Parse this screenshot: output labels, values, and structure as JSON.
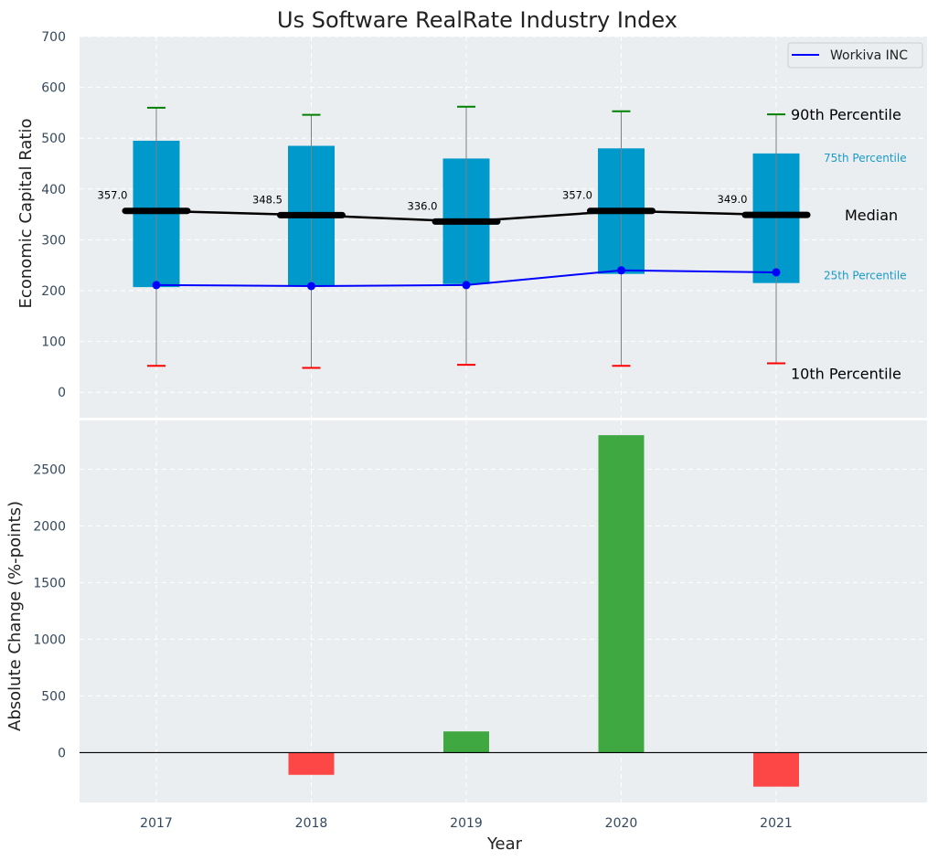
{
  "chart_data": [
    {
      "type": "box",
      "title": "Us Software RealRate Industry Index",
      "xlabel": "",
      "ylabel": "Economic Capital Ratio",
      "ylim": [
        -50,
        700
      ],
      "yticks": [
        0,
        100,
        200,
        300,
        400,
        500,
        600,
        700
      ],
      "grid": true,
      "categories": [
        "2017",
        "2018",
        "2019",
        "2020",
        "2021"
      ],
      "percentiles": {
        "p10": [
          52,
          48,
          54,
          52,
          57
        ],
        "p25": [
          207,
          209,
          213,
          233,
          215
        ],
        "median": [
          357.0,
          348.5,
          336.0,
          357.0,
          349.0
        ],
        "p75": [
          495,
          485,
          460,
          480,
          470
        ],
        "p90": [
          560,
          546,
          562,
          553,
          547
        ]
      },
      "median_labels": [
        "357.0",
        "348.5",
        "336.0",
        "357.0",
        "349.0"
      ],
      "series": [
        {
          "name": "Workiva INC",
          "values": [
            211,
            209,
            211,
            240,
            236
          ],
          "color": "#0000ff"
        }
      ],
      "annotations": {
        "p90": "90th Percentile",
        "p75": "75th Percentile",
        "median": "Median",
        "p25": "25th Percentile",
        "p10": "10th Percentile"
      },
      "legend": {
        "position": "top-right",
        "entries": [
          "Workiva INC"
        ]
      },
      "colors": {
        "box": "#0099cc",
        "median": "#000000",
        "p90": "#008000",
        "p10": "#ff0000",
        "whisker": "#808080",
        "annotation_small": "#1a9bc7"
      }
    },
    {
      "type": "bar",
      "xlabel": "Year",
      "ylabel": "Absolute Change (%-points)",
      "ylim": [
        -440,
        2930
      ],
      "yticks": [
        0,
        500,
        1000,
        1500,
        2000,
        2500
      ],
      "grid": true,
      "categories": [
        "2017",
        "2018",
        "2019",
        "2020",
        "2021"
      ],
      "values": [
        0,
        -196,
        187,
        2800,
        -300
      ],
      "colors": {
        "positive": "#2ca02c",
        "negative": "#ff3333"
      }
    }
  ]
}
